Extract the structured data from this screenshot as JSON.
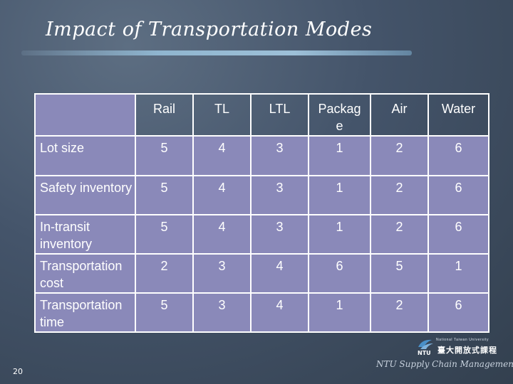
{
  "title": "Impact of Transportation Modes",
  "table": {
    "columns": [
      "Rail",
      "TL",
      "LTL",
      "Packag e",
      "Air",
      "Water"
    ],
    "rows": [
      {
        "label": "Lot size",
        "values": [
          "5",
          "4",
          "3",
          "1",
          "2",
          "6"
        ]
      },
      {
        "label": "Safety inventory",
        "values": [
          "5",
          "4",
          "3",
          "1",
          "2",
          "6"
        ]
      },
      {
        "label": "In-transit inventory",
        "values": [
          "5",
          "4",
          "3",
          "1",
          "2",
          "6"
        ]
      },
      {
        "label": "Transportation cost",
        "values": [
          "2",
          "3",
          "4",
          "6",
          "5",
          "1"
        ]
      },
      {
        "label": "Transportation time",
        "values": [
          "5",
          "3",
          "4",
          "1",
          "2",
          "6"
        ]
      }
    ]
  },
  "page_number": "20",
  "logo": {
    "small_text": "National Taiwan University",
    "cjk_text": "臺大開放式課程",
    "mark_text": "NTU"
  },
  "footer": "NTU Supply Chain Management",
  "colors": {
    "cell_fill": "#8a89b9",
    "background": "#44546a",
    "accent_bar": "#9dc0d8"
  }
}
